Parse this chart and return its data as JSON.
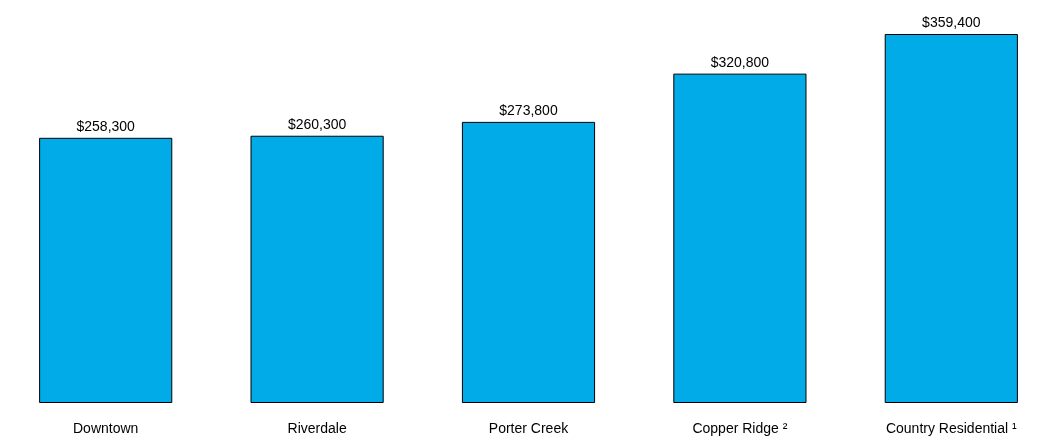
{
  "chart_data": {
    "type": "bar",
    "categories": [
      "Downtown",
      "Riverdale",
      "Porter Creek",
      "Copper Ridge ²",
      "Country Residential ¹"
    ],
    "values": [
      258300,
      260300,
      273800,
      320800,
      359400
    ],
    "value_labels": [
      "$258,300",
      "$260,300",
      "$273,800",
      "$320,800",
      "$359,400"
    ],
    "color": "#00abe8",
    "tick_labels": "x"
  }
}
